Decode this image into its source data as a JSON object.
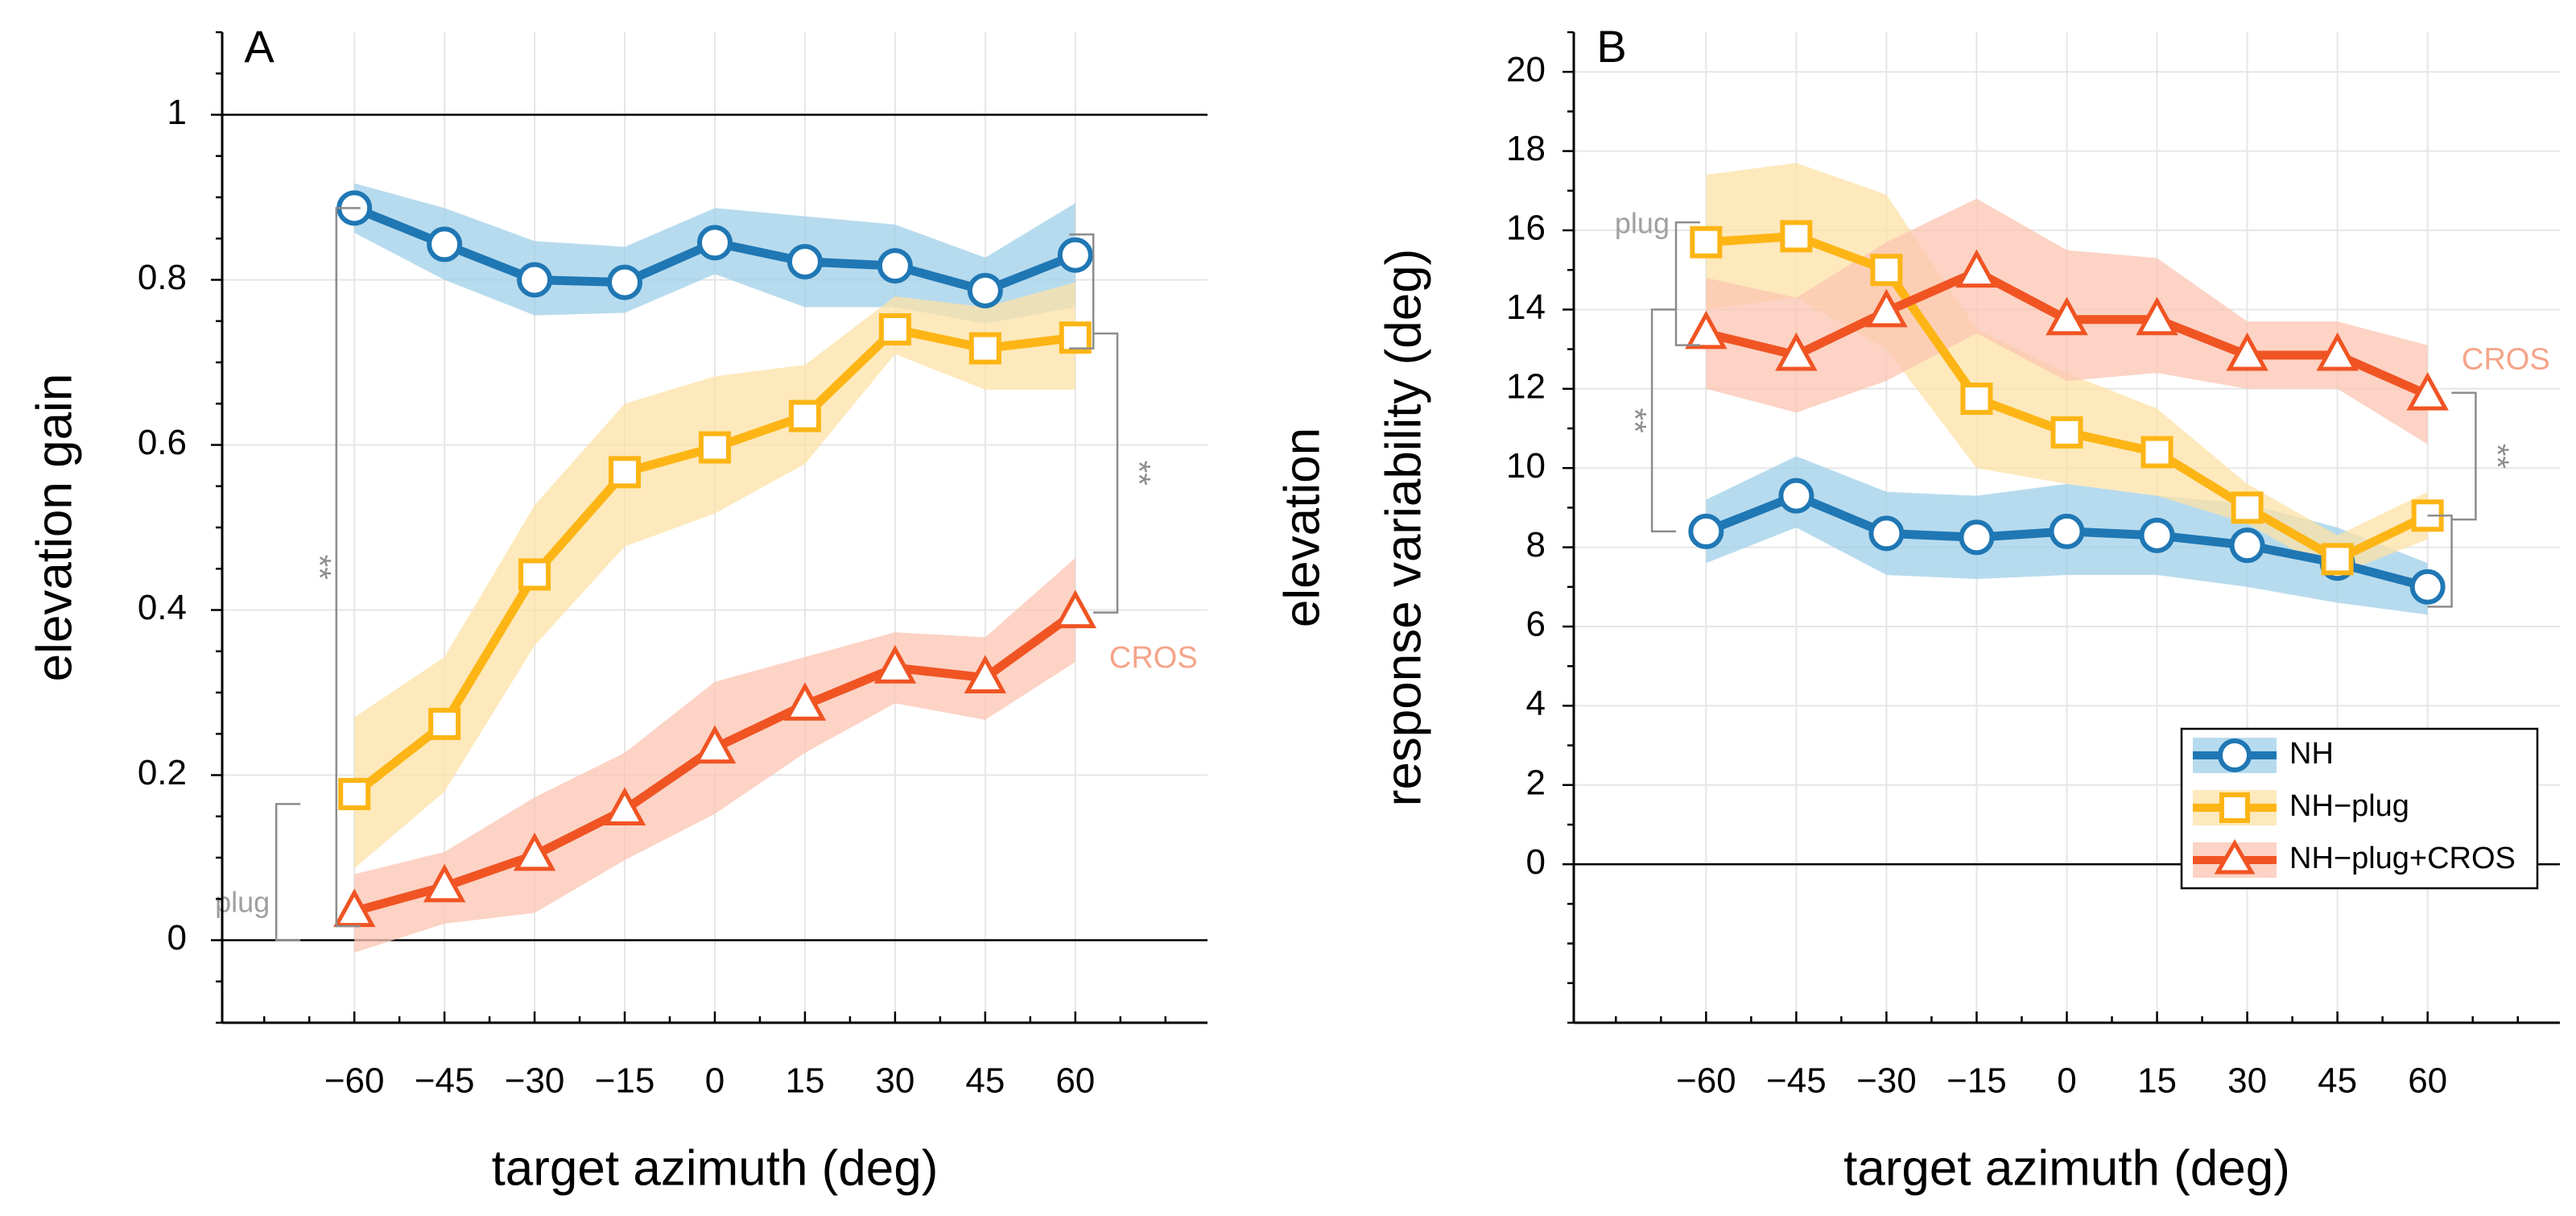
{
  "chart_data": [
    {
      "type": "line",
      "panel_label": "A",
      "title": "",
      "xlabel": "target azimuth (deg)",
      "ylabel": "elevation gain",
      "ylabel2": "",
      "xlim": [
        -82,
        82
      ],
      "ylim": [
        -0.1,
        1.1
      ],
      "x": [
        -60,
        -45,
        -30,
        -15,
        0,
        15,
        30,
        45,
        60
      ],
      "x_tick_labels": [
        "−60",
        "−45",
        "−30",
        "−15",
        "0",
        "15",
        "30",
        "45",
        "60"
      ],
      "y_ticks": [
        0,
        0.2,
        0.4,
        0.6,
        0.8,
        1
      ],
      "y_tick_labels": [
        "0",
        "0.2",
        "0.4",
        "0.6",
        "0.8",
        "1"
      ],
      "grid": true,
      "reference_lines": [
        0,
        1
      ],
      "series": [
        {
          "name": "NH",
          "color": "#1f77b4",
          "band_color": "#9fcfe8",
          "marker": "circle",
          "values": [
            0.887,
            0.843,
            0.8,
            0.797,
            0.845,
            0.822,
            0.817,
            0.787,
            0.83
          ],
          "lower": [
            0.857,
            0.8,
            0.757,
            0.76,
            0.807,
            0.767,
            0.767,
            0.747,
            0.767
          ],
          "upper": [
            0.917,
            0.887,
            0.847,
            0.84,
            0.887,
            0.877,
            0.867,
            0.827,
            0.893
          ]
        },
        {
          "name": "NH−plug",
          "color": "#fdb515",
          "band_color": "#fce2a6",
          "marker": "square",
          "values": [
            0.177,
            0.262,
            0.443,
            0.567,
            0.597,
            0.635,
            0.74,
            0.717,
            0.73
          ],
          "lower": [
            0.087,
            0.18,
            0.357,
            0.477,
            0.517,
            0.577,
            0.71,
            0.667,
            0.667
          ],
          "upper": [
            0.27,
            0.343,
            0.527,
            0.65,
            0.683,
            0.697,
            0.78,
            0.767,
            0.797
          ]
        },
        {
          "name": "NH−plug+CROS",
          "color": "#f05423",
          "band_color": "#fbc4b2",
          "marker": "triangle",
          "values": [
            0.035,
            0.065,
            0.103,
            0.158,
            0.233,
            0.285,
            0.33,
            0.318,
            0.397
          ],
          "lower": [
            -0.015,
            0.02,
            0.033,
            0.097,
            0.153,
            0.227,
            0.287,
            0.267,
            0.337
          ],
          "upper": [
            0.08,
            0.107,
            0.173,
            0.227,
            0.313,
            0.343,
            0.373,
            0.367,
            0.463
          ]
        }
      ],
      "annotations": [
        {
          "text": "**",
          "kind": "bracket",
          "x": -63,
          "y_from": 0.017,
          "y_to": 0.887,
          "side": "left"
        },
        {
          "text": "plug",
          "kind": "bracket",
          "x": -73,
          "y_from": 0.165,
          "y_to": 0.0,
          "side": "left"
        },
        {
          "text": "**",
          "kind": "bracket",
          "x": 67,
          "y_from": 0.397,
          "y_to": 0.735,
          "side": "right"
        },
        {
          "text": "",
          "kind": "bracket",
          "x": 63,
          "y_from": 0.855,
          "y_to": 0.717,
          "side": "right"
        },
        {
          "text": "CROS",
          "kind": "label",
          "x": 73,
          "y": 0.34
        }
      ]
    },
    {
      "type": "line",
      "panel_label": "B",
      "title": "",
      "xlabel": "target azimuth (deg)",
      "ylabel": "elevation",
      "ylabel2": "response variability (deg)",
      "xlim": [
        -82,
        82
      ],
      "ylim": [
        -4,
        21
      ],
      "x": [
        -60,
        -45,
        -30,
        -15,
        0,
        15,
        30,
        45,
        60
      ],
      "x_tick_labels": [
        "−60",
        "−45",
        "−30",
        "−15",
        "0",
        "15",
        "30",
        "45",
        "60"
      ],
      "y_ticks": [
        0,
        2,
        4,
        6,
        8,
        10,
        12,
        14,
        16,
        18,
        20
      ],
      "y_tick_labels": [
        "0",
        "2",
        "4",
        "6",
        "8",
        "10",
        "12",
        "14",
        "16",
        "18",
        "20"
      ],
      "grid": true,
      "reference_lines": [
        0
      ],
      "series": [
        {
          "name": "NH",
          "color": "#1f77b4",
          "band_color": "#9fcfe8",
          "marker": "circle",
          "values": [
            8.4,
            9.3,
            8.35,
            8.25,
            8.4,
            8.3,
            8.05,
            7.6,
            7.0
          ],
          "lower": [
            7.6,
            8.5,
            7.3,
            7.2,
            7.3,
            7.3,
            7.0,
            6.6,
            6.3
          ],
          "upper": [
            9.2,
            10.3,
            9.4,
            9.3,
            9.6,
            9.3,
            9.1,
            8.5,
            7.6
          ]
        },
        {
          "name": "NH−plug",
          "color": "#fdb515",
          "band_color": "#fce2a6",
          "marker": "square",
          "values": [
            15.7,
            15.85,
            15.0,
            11.75,
            10.9,
            10.4,
            9.0,
            7.7,
            8.8
          ],
          "lower": [
            14.0,
            14.3,
            13.0,
            10.0,
            9.6,
            9.3,
            8.6,
            7.3,
            8.2
          ],
          "upper": [
            17.4,
            17.7,
            16.9,
            13.5,
            12.4,
            11.5,
            9.6,
            8.3,
            9.4
          ]
        },
        {
          "name": "NH−plug+CROS",
          "color": "#f05423",
          "band_color": "#fbc4b2",
          "marker": "triangle",
          "values": [
            13.4,
            12.85,
            13.95,
            14.95,
            13.75,
            13.75,
            12.85,
            12.85,
            11.85
          ],
          "lower": [
            12.0,
            11.4,
            12.2,
            13.4,
            12.2,
            12.4,
            12.0,
            12.0,
            10.6
          ],
          "upper": [
            14.8,
            14.3,
            15.7,
            16.8,
            15.5,
            15.3,
            13.7,
            13.7,
            13.1
          ]
        }
      ],
      "legend": {
        "position": "bottom-right",
        "entries": [
          "NH",
          "NH−plug",
          "NH−plug+CROS"
        ]
      },
      "annotations": [
        {
          "text": "plug",
          "kind": "bracket",
          "x": -65,
          "y_from": 13.1,
          "y_to": 16.2,
          "side": "left"
        },
        {
          "text": "**",
          "kind": "bracket",
          "x": -69,
          "y_from": 8.4,
          "y_to": 14.0,
          "side": "left"
        },
        {
          "text": "**",
          "kind": "bracket",
          "x": 68,
          "y_from": 8.7,
          "y_to": 11.9,
          "side": "right"
        },
        {
          "text": "",
          "kind": "bracket",
          "x": 64,
          "y_from": 6.5,
          "y_to": 8.8,
          "side": "right"
        },
        {
          "text": "CROS",
          "kind": "label",
          "x": 73,
          "y": 12.7
        }
      ]
    }
  ]
}
